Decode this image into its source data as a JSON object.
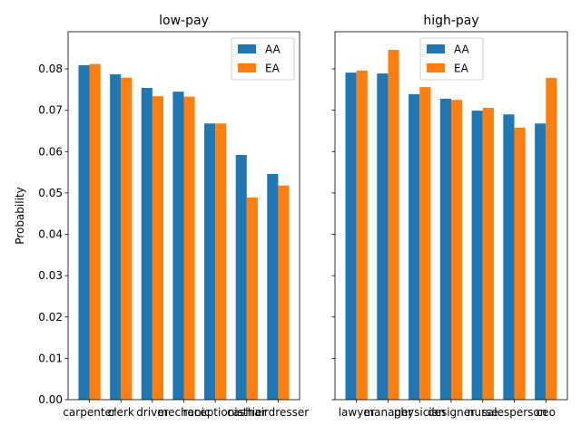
{
  "chart_data": [
    {
      "type": "bar",
      "title": "low-pay",
      "xlabel": "",
      "ylabel": "Probability",
      "ylim": [
        0,
        0.089
      ],
      "yticks": [
        0.0,
        0.01,
        0.02,
        0.03,
        0.04,
        0.05,
        0.06,
        0.07,
        0.08
      ],
      "ytick_labels": [
        "0.00",
        "0.01",
        "0.02",
        "0.03",
        "0.04",
        "0.05",
        "0.06",
        "0.07",
        "0.08"
      ],
      "categories": [
        "carpenter",
        "clerk",
        "driver",
        "mechanic",
        "receptionist",
        "cashier",
        "hairdresser"
      ],
      "series": [
        {
          "name": "AA",
          "values": [
            0.0809,
            0.0787,
            0.0754,
            0.0745,
            0.0668,
            0.0592,
            0.0546
          ]
        },
        {
          "name": "EA",
          "values": [
            0.0812,
            0.0779,
            0.0734,
            0.0733,
            0.0668,
            0.0489,
            0.0518
          ]
        }
      ],
      "legend": "top-right",
      "grid": false
    },
    {
      "type": "bar",
      "title": "high-pay",
      "xlabel": "",
      "ylabel": "",
      "ylim": [
        0,
        0.089
      ],
      "categories": [
        "lawyer",
        "manager",
        "physician",
        "designer",
        "nurse",
        "salesperson",
        "ceo"
      ],
      "series": [
        {
          "name": "AA",
          "values": [
            0.0791,
            0.0789,
            0.0739,
            0.0728,
            0.0699,
            0.069,
            0.0668
          ]
        },
        {
          "name": "EA",
          "values": [
            0.0796,
            0.0846,
            0.0756,
            0.0725,
            0.0706,
            0.0658,
            0.0778
          ]
        }
      ],
      "legend": "top-center",
      "grid": false
    }
  ],
  "colors": {
    "AA": "#1f77b4",
    "EA": "#ff7f0e"
  }
}
